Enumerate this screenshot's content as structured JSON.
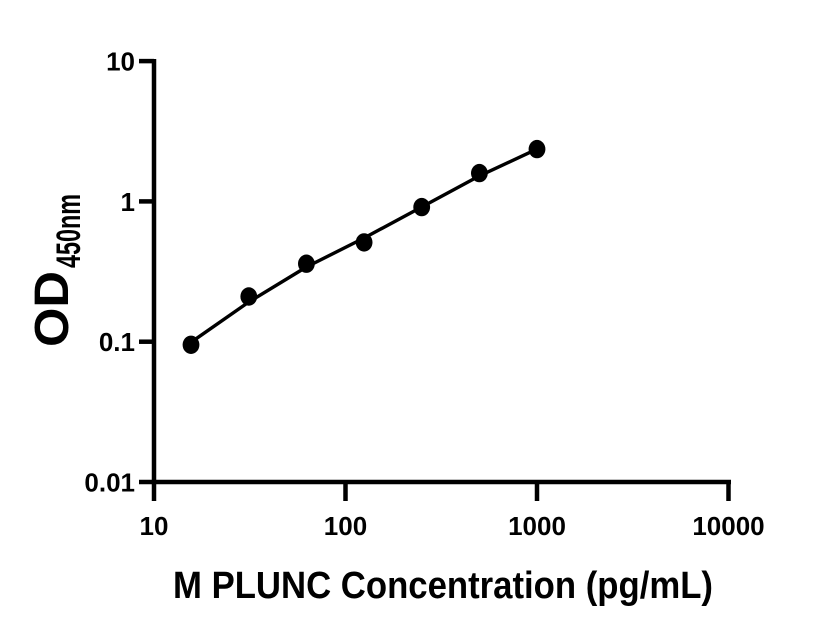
{
  "figure": {
    "background": "#ffffff",
    "foreground": "#000000"
  },
  "chart_data": {
    "type": "scatter",
    "title": "",
    "xlabel": "M PLUNC Concentration (pg/mL)",
    "ylabel_main": "OD",
    "ylabel_sub": "450nm",
    "x_scale": "log",
    "y_scale": "log",
    "xlim": [
      10,
      10000
    ],
    "ylim": [
      0.01,
      10
    ],
    "x_ticks": [
      10,
      100,
      1000,
      10000
    ],
    "x_tick_labels": [
      "10",
      "100",
      "1000",
      "10000"
    ],
    "y_ticks": [
      0.01,
      0.1,
      1,
      10
    ],
    "y_tick_labels": [
      "0.01",
      "0.1",
      "1",
      "10"
    ],
    "grid": false,
    "legend": "none",
    "axis_color": "#000000",
    "marker_color": "#000000",
    "line_color": "#000000",
    "series": [
      {
        "name": "standard-points",
        "kind": "points",
        "x": [
          15.6,
          31.25,
          62.5,
          125,
          250,
          500,
          1000
        ],
        "y": [
          0.095,
          0.21,
          0.36,
          0.51,
          0.91,
          1.59,
          2.36
        ]
      },
      {
        "name": "fit-line",
        "kind": "line",
        "x": [
          15.6,
          31.25,
          62.5,
          125,
          250,
          500,
          1000
        ],
        "y": [
          0.099,
          0.192,
          0.341,
          0.548,
          0.912,
          1.52,
          2.36
        ]
      }
    ]
  }
}
